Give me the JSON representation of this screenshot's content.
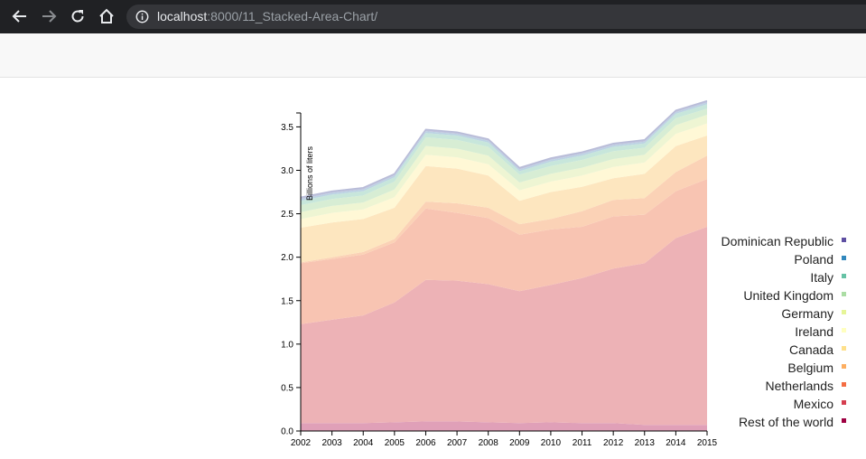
{
  "browser": {
    "url_host": "localhost",
    "url_rest": ":8000/11_Stacked-Area-Chart/",
    "icons": [
      "back-arrow-icon",
      "forward-arrow-icon",
      "reload-icon",
      "home-icon",
      "info-icon"
    ]
  },
  "chart_data": {
    "type": "area",
    "stacked": true,
    "ylabel": "Billions of liters",
    "xlabel": "",
    "x": [
      2002,
      2003,
      2004,
      2005,
      2006,
      2007,
      2008,
      2009,
      2010,
      2011,
      2012,
      2013,
      2014,
      2015
    ],
    "ylim": [
      0,
      3.65
    ],
    "yticks": [
      "0.0",
      "0.5",
      "1.0",
      "1.5",
      "2.0",
      "2.5",
      "3.0",
      "3.5"
    ],
    "legend_position": "right",
    "series": [
      {
        "name": "Rest of the world",
        "color": "#e0a0b8",
        "values": [
          0.09,
          0.09,
          0.09,
          0.1,
          0.11,
          0.11,
          0.1,
          0.09,
          0.1,
          0.09,
          0.09,
          0.07,
          0.07,
          0.07
        ]
      },
      {
        "name": "Mexico",
        "color": "#edb2b6",
        "values": [
          1.14,
          1.19,
          1.24,
          1.38,
          1.63,
          1.62,
          1.59,
          1.52,
          1.58,
          1.67,
          1.78,
          1.86,
          2.15,
          2.28
        ]
      },
      {
        "name": "Netherlands",
        "color": "#f8c4b2",
        "values": [
          0.7,
          0.7,
          0.7,
          0.69,
          0.82,
          0.78,
          0.76,
          0.65,
          0.64,
          0.59,
          0.6,
          0.56,
          0.54,
          0.55
        ]
      },
      {
        "name": "Belgium",
        "color": "#fbd2b6",
        "values": [
          0.01,
          0.02,
          0.03,
          0.04,
          0.08,
          0.11,
          0.12,
          0.12,
          0.12,
          0.18,
          0.19,
          0.19,
          0.22,
          0.27
        ]
      },
      {
        "name": "Canada",
        "color": "#fde6bf",
        "values": [
          0.4,
          0.4,
          0.38,
          0.36,
          0.41,
          0.4,
          0.37,
          0.27,
          0.31,
          0.28,
          0.25,
          0.28,
          0.3,
          0.23
        ]
      },
      {
        "name": "Ireland",
        "color": "#fff8d6",
        "values": [
          0.1,
          0.11,
          0.11,
          0.12,
          0.13,
          0.13,
          0.13,
          0.12,
          0.12,
          0.13,
          0.13,
          0.13,
          0.14,
          0.14
        ]
      },
      {
        "name": "Germany",
        "color": "#eef5d3",
        "values": [
          0.08,
          0.08,
          0.08,
          0.09,
          0.1,
          0.1,
          0.1,
          0.09,
          0.09,
          0.09,
          0.09,
          0.09,
          0.1,
          0.1
        ]
      },
      {
        "name": "United Kingdom",
        "color": "#d7edd4",
        "values": [
          0.08,
          0.08,
          0.08,
          0.09,
          0.1,
          0.1,
          0.1,
          0.09,
          0.09,
          0.09,
          0.09,
          0.08,
          0.08,
          0.07
        ]
      },
      {
        "name": "Italy",
        "color": "#c7e6db",
        "values": [
          0.05,
          0.05,
          0.05,
          0.05,
          0.05,
          0.05,
          0.05,
          0.04,
          0.05,
          0.05,
          0.05,
          0.05,
          0.05,
          0.05
        ]
      },
      {
        "name": "Poland",
        "color": "#bcd3e3",
        "values": [
          0.02,
          0.02,
          0.02,
          0.02,
          0.02,
          0.02,
          0.02,
          0.02,
          0.02,
          0.02,
          0.02,
          0.02,
          0.02,
          0.02
        ]
      },
      {
        "name": "Dominican Republic",
        "color": "#c0c4de",
        "values": [
          0.02,
          0.02,
          0.02,
          0.02,
          0.02,
          0.02,
          0.02,
          0.02,
          0.02,
          0.02,
          0.02,
          0.02,
          0.02,
          0.02
        ]
      }
    ],
    "legend_order": [
      "Dominican Republic",
      "Poland",
      "Italy",
      "United Kingdom",
      "Germany",
      "Ireland",
      "Canada",
      "Belgium",
      "Netherlands",
      "Mexico",
      "Rest of the world"
    ],
    "legend_colors": [
      "#5e4fa2",
      "#3288bd",
      "#66c2a5",
      "#abdda4",
      "#e6f598",
      "#ffffbf",
      "#fee08b",
      "#fdae61",
      "#f46d43",
      "#d53e4f",
      "#9e0142"
    ]
  }
}
